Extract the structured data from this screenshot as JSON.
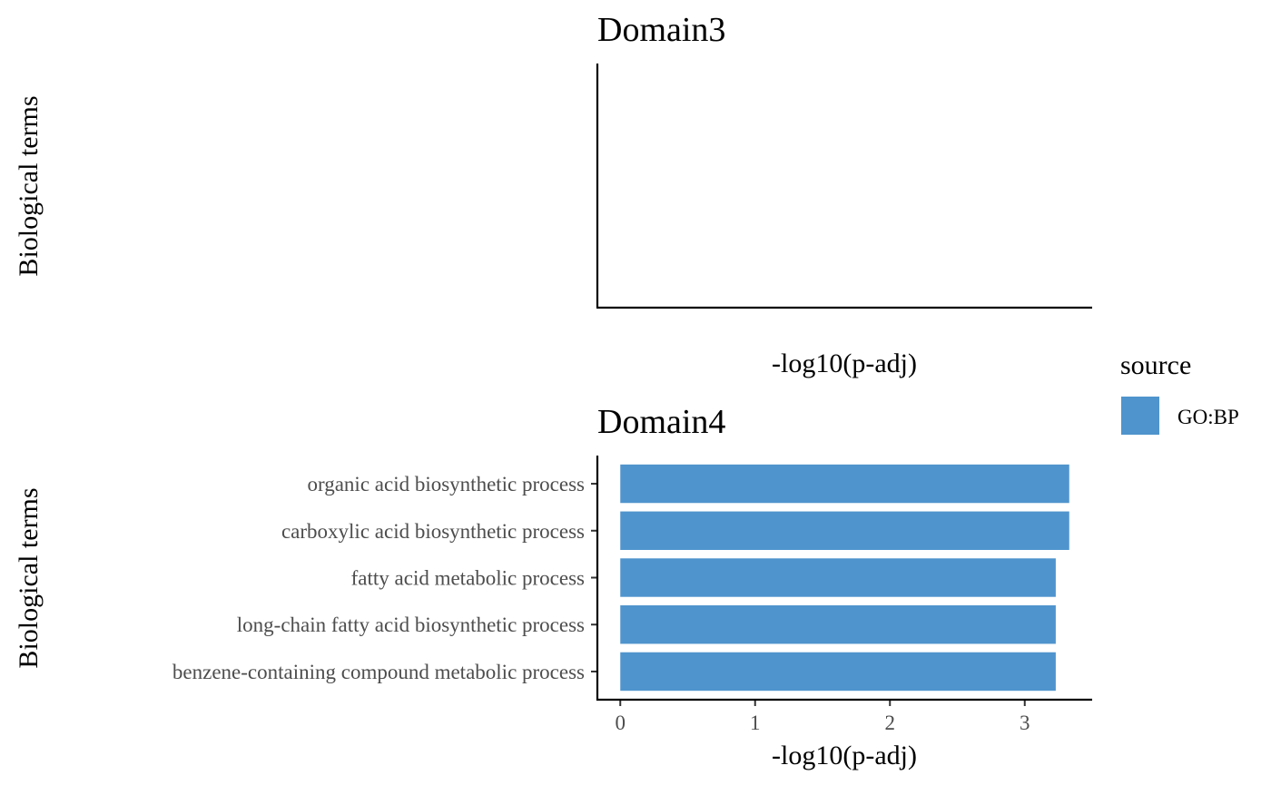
{
  "chart_data": [
    {
      "type": "bar",
      "orientation": "horizontal",
      "title": "Domain3",
      "xlabel": "-log10(p-adj)",
      "ylabel": "Biological terms",
      "categories": [],
      "values": [],
      "grid": false
    },
    {
      "type": "bar",
      "orientation": "horizontal",
      "title": "Domain4",
      "xlabel": "-log10(p-adj)",
      "ylabel": "Biological terms",
      "categories": [
        "organic acid biosynthetic process",
        "carboxylic acid biosynthetic process",
        "fatty acid metabolic process",
        "long-chain fatty acid biosynthetic process",
        "benzene-containing compound metabolic process"
      ],
      "values": [
        3.33,
        3.33,
        3.23,
        3.23,
        3.23
      ],
      "series_name": "GO:BP",
      "color": "#4f94cd",
      "xticks": [
        0,
        1,
        2,
        3
      ],
      "xlim": [
        -0.17,
        3.5
      ],
      "grid": false
    }
  ],
  "legend": {
    "title": "source",
    "items": [
      {
        "label": "GO:BP",
        "color": "#4f94cd"
      }
    ],
    "placement": "right"
  }
}
